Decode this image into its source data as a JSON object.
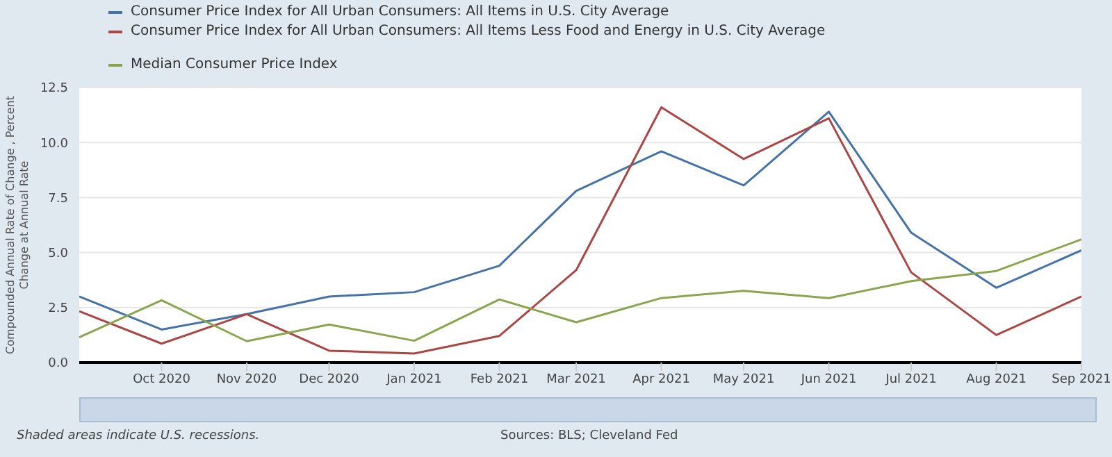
{
  "chart_data": {
    "type": "line",
    "ylabel": "Compounded Annual Rate of Change , Percent Change at Annual Rate",
    "x": [
      "2020-09",
      "2020-10",
      "2020-11",
      "2020-12",
      "2021-01",
      "2021-02",
      "2021-03",
      "2021-04",
      "2021-05",
      "2021-06",
      "2021-07",
      "2021-08",
      "2021-09"
    ],
    "series": [
      {
        "name": "Consumer Price Index for All Urban Consumers: All Items in U.S. City Average",
        "color": "#4572a7",
        "values": [
          3.0,
          1.5,
          2.2,
          3.0,
          3.2,
          4.4,
          7.8,
          9.6,
          8.05,
          11.4,
          5.9,
          3.4,
          5.1
        ]
      },
      {
        "name": "Consumer Price Index for All Urban Consumers: All Items Less Food and Energy in U.S. City Average",
        "color": "#aa4643",
        "values": [
          2.33,
          0.86,
          2.2,
          0.54,
          0.41,
          1.21,
          4.2,
          11.6,
          9.25,
          11.1,
          4.1,
          1.25,
          3.0
        ]
      },
      {
        "name": "Median Consumer Price Index",
        "color": "#89a54e",
        "values": [
          1.15,
          2.83,
          0.97,
          1.73,
          0.99,
          2.87,
          1.83,
          2.93,
          3.26,
          2.93,
          3.7,
          4.16,
          5.6
        ]
      }
    ],
    "xlim": [
      "2020-09",
      "2021-09"
    ],
    "xticks": [
      {
        "value": "2020-10",
        "label": "Oct 2020"
      },
      {
        "value": "2020-11",
        "label": "Nov 2020"
      },
      {
        "value": "2020-12",
        "label": "Dec 2020"
      },
      {
        "value": "2021-01",
        "label": "Jan 2021"
      },
      {
        "value": "2021-02",
        "label": "Feb 2021"
      },
      {
        "value": "2021-03",
        "label": "Mar 2021"
      },
      {
        "value": "2021-04",
        "label": "Apr 2021"
      },
      {
        "value": "2021-05",
        "label": "May 2021"
      },
      {
        "value": "2021-06",
        "label": "Jun 2021"
      },
      {
        "value": "2021-07",
        "label": "Jul 2021"
      },
      {
        "value": "2021-08",
        "label": "Aug 2021"
      },
      {
        "value": "2021-09",
        "label": "Sep 2021"
      }
    ],
    "ylim": [
      0,
      12.5
    ],
    "yticks": [
      {
        "value": 0,
        "label": "0.0"
      },
      {
        "value": 2.5,
        "label": "2.5"
      },
      {
        "value": 5,
        "label": "5.0"
      },
      {
        "value": 7.5,
        "label": "7.5"
      },
      {
        "value": 10,
        "label": "10.0"
      },
      {
        "value": 12.5,
        "label": "12.5"
      }
    ],
    "grid": "y",
    "legend": "top",
    "marker": "none",
    "line_style": "solid",
    "annotations": [
      "Shaded areas indicate U.S. recessions.",
      "Sources: BLS; Cleveland Fed"
    ]
  }
}
